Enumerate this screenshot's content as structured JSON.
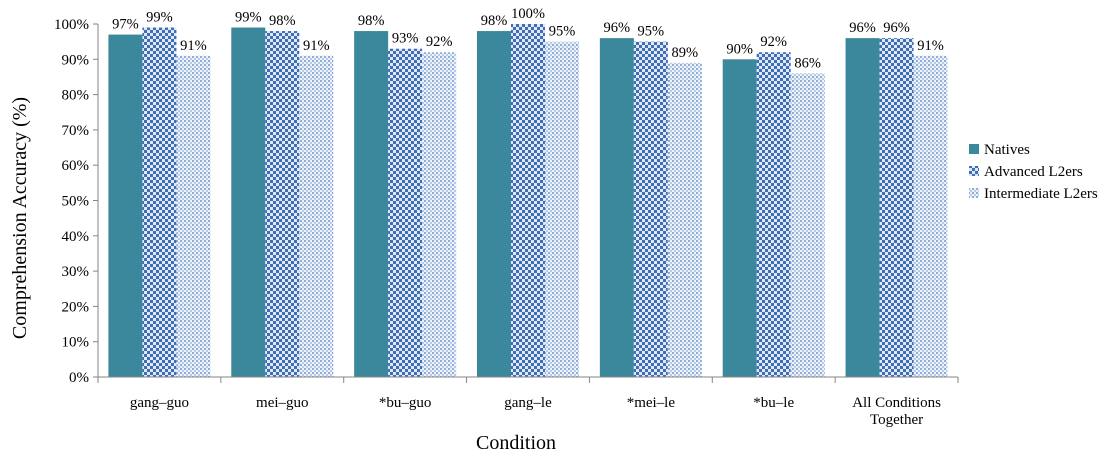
{
  "chart_data": {
    "type": "bar",
    "title": "",
    "xlabel": "Condition",
    "ylabel": "Comprehension Accuracy (%)",
    "ylim": [
      0,
      100
    ],
    "y_ticks": [
      "0%",
      "10%",
      "20%",
      "30%",
      "40%",
      "50%",
      "60%",
      "70%",
      "80%",
      "90%",
      "100%"
    ],
    "grid": false,
    "legend_position": "right",
    "categories": [
      [
        "gang–guo"
      ],
      [
        "mei–guo"
      ],
      [
        "*bu–guo"
      ],
      [
        "gang–le"
      ],
      [
        "*mei–le"
      ],
      [
        "*bu–le"
      ],
      [
        "All Conditions",
        "Together"
      ]
    ],
    "series": [
      {
        "name": "Natives",
        "color": "#3b879b",
        "pattern": "solid",
        "values": [
          97,
          99,
          98,
          98,
          96,
          90,
          96
        ],
        "labels": [
          "97%",
          "99%",
          "98%",
          "98%",
          "96%",
          "90%",
          "96%"
        ]
      },
      {
        "name": "Advanced L2ers",
        "color": "#4a73b8",
        "pattern": "checker",
        "values": [
          99,
          98,
          93,
          100,
          95,
          92,
          96
        ],
        "labels": [
          "99%",
          "98%",
          "93%",
          "100%",
          "95%",
          "92%",
          "96%"
        ]
      },
      {
        "name": "Intermediate L2ers",
        "color": "#8fb0d8",
        "pattern": "dots",
        "values": [
          91,
          91,
          92,
          95,
          89,
          86,
          91
        ],
        "labels": [
          "91%",
          "91%",
          "92%",
          "95%",
          "89%",
          "86%",
          "91%"
        ]
      }
    ]
  }
}
